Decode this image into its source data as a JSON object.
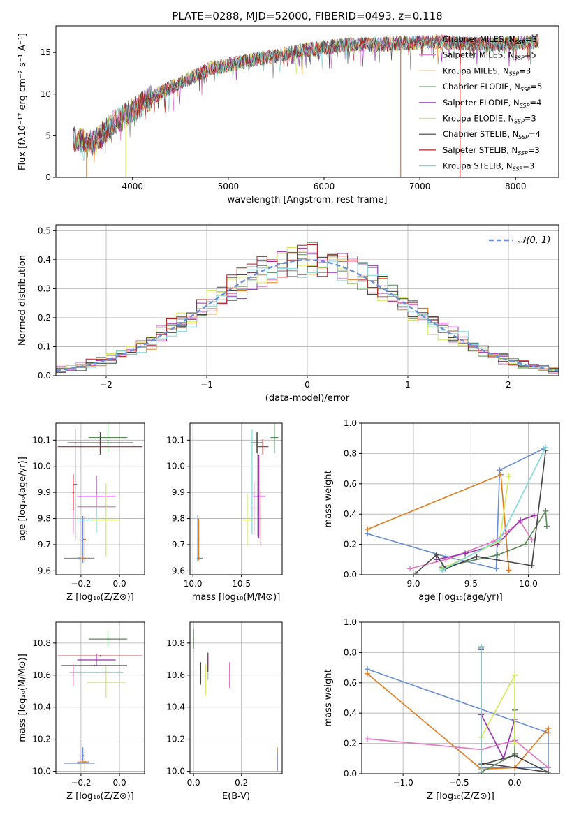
{
  "figure_title": "PLATE=0288, MJD=52000, FIBERID=0493, z=0.118",
  "colors": {
    "chabrier_miles": "#7f7f7f",
    "salpeter_miles": "#e377c2",
    "kroupa_miles": "#e07b20",
    "chabrier_elodie": "#5a8a5a",
    "salpeter_elodie": "#9a2fb0",
    "kroupa_elodie": "#d4e85a",
    "chabrier_stelib": "#444444",
    "salpeter_stelib": "#b22222",
    "kroupa_stelib": "#7fd8d8",
    "blue": "#6a8fd8"
  },
  "legend": [
    {
      "label": "Chabrier MILES, N",
      "sub": "SSP",
      "eq": "=3",
      "color_key": "chabrier_miles"
    },
    {
      "label": "Salpeter MILES, N",
      "sub": "SSP",
      "eq": "=5",
      "color_key": "salpeter_miles"
    },
    {
      "label": "Kroupa MILES, N",
      "sub": "SSP",
      "eq": "=3",
      "color_key": "kroupa_miles"
    },
    {
      "label": "Chabrier ELODIE, N",
      "sub": "SSP",
      "eq": "=5",
      "color_key": "chabrier_elodie"
    },
    {
      "label": "Salpeter ELODIE, N",
      "sub": "SSP",
      "eq": "=4",
      "color_key": "salpeter_elodie"
    },
    {
      "label": "Kroupa ELODIE, N",
      "sub": "SSP",
      "eq": "=3",
      "color_key": "kroupa_elodie"
    },
    {
      "label": "Chabrier STELIB, N",
      "sub": "SSP",
      "eq": "=4",
      "color_key": "chabrier_stelib"
    },
    {
      "label": "Salpeter STELIB, N",
      "sub": "SSP",
      "eq": "=3",
      "color_key": "salpeter_stelib"
    },
    {
      "label": "Kroupa STELIB, N",
      "sub": "SSP",
      "eq": "=3",
      "color_key": "kroupa_stelib"
    }
  ],
  "chart_data": [
    {
      "id": "spectrum",
      "type": "line",
      "xlabel": "wavelength [Angstrom, rest frame]",
      "ylabel": "Flux [fλ10⁻¹⁷ erg cm⁻² s⁻¹ A⁻¹]",
      "xlim": [
        3200,
        8450
      ],
      "ylim": [
        0,
        18.2
      ],
      "xticks": [
        4000,
        5000,
        6000,
        7000,
        8000
      ],
      "yticks": [
        0,
        5,
        10,
        15
      ],
      "grid": false,
      "legend_position": "right",
      "continuum_x": [
        3400,
        3600,
        3800,
        4000,
        4200,
        4400,
        4600,
        4800,
        5000,
        5200,
        5400,
        5600,
        5800,
        6000,
        6200,
        6400,
        6600,
        6800,
        7000,
        7200,
        7400,
        7600,
        7800,
        8000,
        8200
      ],
      "continuum_y": [
        4.5,
        4.2,
        6.5,
        8.0,
        9.6,
        10.8,
        11.9,
        13.0,
        13.5,
        14.0,
        14.4,
        14.8,
        15.3,
        15.6,
        15.9,
        16.0,
        16.0,
        16.1,
        16.2,
        16.3,
        16.1,
        16.0,
        16.0,
        16.1,
        16.3
      ],
      "vertical_spikes": [
        {
          "x": 3520,
          "color_key": "kroupa_miles"
        },
        {
          "x": 3930,
          "color_key": "kroupa_elodie"
        },
        {
          "x": 6800,
          "color_key": "kroupa_miles"
        },
        {
          "x": 7420,
          "color_key": "salpeter_stelib"
        }
      ]
    },
    {
      "id": "residual_hist",
      "type": "line",
      "xlabel": "(data-model)/error",
      "ylabel": "Normed distribution",
      "xlim": [
        -2.5,
        2.5
      ],
      "ylim": [
        0,
        0.52
      ],
      "xticks": [
        -2,
        -1,
        0,
        1,
        2
      ],
      "yticks": [
        0.0,
        0.1,
        0.2,
        0.3,
        0.4,
        0.5
      ],
      "grid": true,
      "reference_label": "𝒩(0, 1)",
      "reference_color_key": "blue",
      "bin_width": 0.1,
      "series": [
        {
          "color_key": "chabrier_miles",
          "jitter": 0.0
        },
        {
          "color_key": "salpeter_miles",
          "jitter": 0.04
        },
        {
          "color_key": "kroupa_miles",
          "jitter": -0.04
        },
        {
          "color_key": "chabrier_elodie",
          "jitter": 0.02
        },
        {
          "color_key": "salpeter_elodie",
          "jitter": -0.03
        },
        {
          "color_key": "kroupa_elodie",
          "jitter": 0.05
        },
        {
          "color_key": "chabrier_stelib",
          "jitter": -0.02
        },
        {
          "color_key": "salpeter_stelib",
          "jitter": 0.03
        },
        {
          "color_key": "kroupa_stelib",
          "jitter": -0.05
        }
      ]
    },
    {
      "id": "age_vs_Z",
      "type": "scatter",
      "xlabel": "Z [log₁₀(Z/Z⊙)]",
      "ylabel": "age  [log₁₀(age/yr)]",
      "xlim": [
        -0.33,
        0.13
      ],
      "ylim": [
        9.585,
        10.165
      ],
      "xticks": [
        -0.2,
        0.0
      ],
      "yticks": [
        9.6,
        9.7,
        9.8,
        9.9,
        10.0,
        10.1
      ],
      "grid": true,
      "points": [
        {
          "x": -0.06,
          "y": 10.11,
          "xerr": 0.1,
          "yerr": 0.06,
          "color_key": "chabrier_elodie"
        },
        {
          "x": -0.1,
          "y": 10.09,
          "xerr": 0.17,
          "yerr": 0.04,
          "color_key": "chabrier_stelib"
        },
        {
          "x": -0.1,
          "y": 10.075,
          "xerr": 0.22,
          "yerr": 0.03,
          "color_key": "salpeter_stelib"
        },
        {
          "x": -0.23,
          "y": 9.93,
          "xerr": 0.01,
          "yerr": 0.21,
          "color_key": "chabrier_stelib"
        },
        {
          "x": -0.12,
          "y": 9.885,
          "xerr": 0.1,
          "yerr": 0.08,
          "color_key": "salpeter_elodie"
        },
        {
          "x": -0.12,
          "y": 9.845,
          "xerr": 0.1,
          "yerr": 0.05,
          "color_key": "salpeter_miles"
        },
        {
          "x": -0.24,
          "y": 9.84,
          "xerr": 0.01,
          "yerr": 0.1,
          "color_key": "salpeter_miles"
        },
        {
          "x": -0.12,
          "y": 9.795,
          "xerr": 0.1,
          "yerr": 0.05,
          "color_key": "kroupa_stelib"
        },
        {
          "x": -0.07,
          "y": 9.795,
          "xerr": 0.07,
          "yerr": 0.14,
          "color_key": "kroupa_elodie"
        },
        {
          "x": -0.24,
          "y": 9.9,
          "xerr": 0.005,
          "yerr": 0.07,
          "color_key": "salpeter_stelib"
        },
        {
          "x": -0.18,
          "y": 9.72,
          "xerr": 0.005,
          "yerr": 0.09,
          "color_key": "kroupa_miles"
        },
        {
          "x": -0.19,
          "y": 9.72,
          "xerr": 0.005,
          "yerr": 0.09,
          "color_key": "blue"
        },
        {
          "x": -0.21,
          "y": 9.648,
          "xerr": 0.08,
          "yerr": 0.005,
          "color_key": "blue"
        },
        {
          "x": -0.19,
          "y": 9.648,
          "xerr": 0.06,
          "yerr": 0.005,
          "color_key": "kroupa_miles"
        }
      ]
    },
    {
      "id": "age_vs_mass",
      "type": "scatter",
      "xlabel": "mass [log₁₀(M/M⊙)]",
      "ylabel": "",
      "xlim": [
        9.97,
        10.92
      ],
      "ylim": [
        9.585,
        10.165
      ],
      "xticks": [
        10.0,
        10.5
      ],
      "yticks": [
        9.6,
        9.7,
        9.8,
        9.9,
        10.0,
        10.1
      ],
      "grid": true,
      "points": [
        {
          "x": 10.84,
          "y": 10.11,
          "xerr": 0.04,
          "yerr": 0.06,
          "color_key": "chabrier_elodie"
        },
        {
          "x": 10.66,
          "y": 10.09,
          "xerr": 0.06,
          "yerr": 0.04,
          "color_key": "chabrier_stelib"
        },
        {
          "x": 10.72,
          "y": 10.075,
          "xerr": 0.06,
          "yerr": 0.03,
          "color_key": "salpeter_stelib"
        },
        {
          "x": 10.67,
          "y": 9.93,
          "xerr": 0.005,
          "yerr": 0.2,
          "color_key": "chabrier_stelib"
        },
        {
          "x": 10.68,
          "y": 9.885,
          "xerr": 0.06,
          "yerr": 0.16,
          "color_key": "salpeter_elodie"
        },
        {
          "x": 10.63,
          "y": 9.84,
          "xerr": 0.04,
          "yerr": 0.1,
          "color_key": "salpeter_miles"
        },
        {
          "x": 10.61,
          "y": 9.94,
          "xerr": 0.005,
          "yerr": 0.2,
          "color_key": "kroupa_stelib"
        },
        {
          "x": 10.56,
          "y": 9.795,
          "xerr": 0.05,
          "yerr": 0.1,
          "color_key": "kroupa_elodie"
        },
        {
          "x": 10.7,
          "y": 9.8,
          "xerr": 0.005,
          "yerr": 0.1,
          "color_key": "salpeter_stelib"
        },
        {
          "x": 10.05,
          "y": 9.725,
          "xerr": 0.005,
          "yerr": 0.09,
          "color_key": "blue"
        },
        {
          "x": 10.06,
          "y": 9.72,
          "xerr": 0.005,
          "yerr": 0.08,
          "color_key": "kroupa_miles"
        },
        {
          "x": 10.07,
          "y": 9.648,
          "xerr": 0.03,
          "yerr": 0.005,
          "color_key": "blue"
        }
      ]
    },
    {
      "id": "weight_vs_age",
      "type": "line",
      "xlabel": "age  [log₁₀(age/yr)]",
      "ylabel": "mass weight",
      "xlim": [
        8.55,
        10.27
      ],
      "ylim": [
        0,
        1.0
      ],
      "xticks": [
        9.0,
        9.5,
        10.0
      ],
      "yticks": [
        0.0,
        0.2,
        0.4,
        0.6,
        0.8,
        1.0
      ],
      "grid": true,
      "series": [
        {
          "color_key": "blue",
          "x": [
            8.6,
            9.28,
            9.72,
            9.75,
            10.13
          ],
          "y": [
            0.27,
            0.12,
            0.04,
            0.69,
            0.83
          ]
        },
        {
          "color_key": "kroupa_miles",
          "x": [
            8.6,
            9.76,
            9.83
          ],
          "y": [
            0.3,
            0.66,
            0.03
          ]
        },
        {
          "color_key": "salpeter_miles",
          "x": [
            8.97,
            9.28,
            9.7,
            9.93,
            10.03
          ],
          "y": [
            0.04,
            0.1,
            0.22,
            0.35,
            0.23
          ]
        },
        {
          "color_key": "salpeter_elodie",
          "x": [
            9.2,
            9.45,
            9.73,
            9.93,
            10.05
          ],
          "y": [
            0.1,
            0.14,
            0.2,
            0.36,
            0.39
          ]
        },
        {
          "color_key": "chabrier_elodie",
          "x": [
            9.25,
            9.73,
            9.97,
            10.15,
            10.16
          ],
          "y": [
            0.05,
            0.13,
            0.2,
            0.42,
            0.32
          ]
        },
        {
          "color_key": "kroupa_elodie",
          "x": [
            9.25,
            9.75,
            9.83
          ],
          "y": [
            0.04,
            0.22,
            0.65
          ]
        },
        {
          "color_key": "chabrier_stelib",
          "x": [
            9.02,
            9.2,
            9.28,
            9.55,
            10.03,
            10.15
          ],
          "y": [
            0.01,
            0.13,
            0.04,
            0.12,
            0.06,
            0.82
          ]
        },
        {
          "color_key": "kroupa_stelib",
          "x": [
            9.25,
            9.75,
            10.15
          ],
          "y": [
            0.03,
            0.23,
            0.84
          ]
        }
      ]
    },
    {
      "id": "mass_vs_Z",
      "type": "scatter",
      "xlabel": "Z [log₁₀(Z/Z⊙)]",
      "ylabel": "mass [log₁₀(M/M⊙)]",
      "xlim": [
        -0.33,
        0.13
      ],
      "ylim": [
        9.985,
        10.93
      ],
      "xticks": [
        -0.2,
        0.0
      ],
      "yticks": [
        10.0,
        10.2,
        10.4,
        10.6,
        10.8
      ],
      "grid": true,
      "points": [
        {
          "x": -0.06,
          "y": 10.825,
          "xerr": 0.1,
          "yerr": 0.05,
          "color_key": "chabrier_elodie"
        },
        {
          "x": -0.1,
          "y": 10.72,
          "xerr": 0.22,
          "yerr": 0.005,
          "color_key": "salpeter_stelib"
        },
        {
          "x": -0.12,
          "y": 10.695,
          "xerr": 0.1,
          "yerr": 0.04,
          "color_key": "salpeter_elodie"
        },
        {
          "x": -0.13,
          "y": 10.66,
          "xerr": 0.17,
          "yerr": 0.005,
          "color_key": "chabrier_stelib"
        },
        {
          "x": -0.12,
          "y": 10.615,
          "xerr": 0.14,
          "yerr": 0.005,
          "color_key": "kroupa_stelib"
        },
        {
          "x": -0.24,
          "y": 10.6,
          "xerr": 0.005,
          "yerr": 0.07,
          "color_key": "salpeter_miles"
        },
        {
          "x": -0.07,
          "y": 10.555,
          "xerr": 0.1,
          "yerr": 0.1,
          "color_key": "kroupa_elodie"
        },
        {
          "x": -0.19,
          "y": 10.1,
          "xerr": 0.005,
          "yerr": 0.05,
          "color_key": "blue"
        },
        {
          "x": -0.18,
          "y": 10.06,
          "xerr": 0.005,
          "yerr": 0.06,
          "color_key": "kroupa_miles"
        },
        {
          "x": -0.21,
          "y": 10.05,
          "xerr": 0.08,
          "yerr": 0.005,
          "color_key": "blue"
        },
        {
          "x": -0.19,
          "y": 10.058,
          "xerr": 0.03,
          "yerr": 0.005,
          "color_key": "kroupa_miles"
        }
      ]
    },
    {
      "id": "mass_vs_ebv",
      "type": "scatter",
      "xlabel": "E(B-V)",
      "ylabel": "",
      "xlim": [
        -0.015,
        0.37
      ],
      "ylim": [
        9.985,
        10.93
      ],
      "xticks": [
        0.0,
        0.2
      ],
      "yticks": [
        10.0,
        10.2,
        10.4,
        10.6,
        10.8
      ],
      "grid": true,
      "points": [
        {
          "x": 0.0,
          "y": 10.825,
          "xerr": 0.002,
          "yerr": 0.06,
          "color_key": "chabrier_elodie"
        },
        {
          "x": 0.03,
          "y": 10.61,
          "xerr": 0.002,
          "yerr": 0.07,
          "color_key": "chabrier_stelib"
        },
        {
          "x": 0.05,
          "y": 10.57,
          "xerr": 0.002,
          "yerr": 0.1,
          "color_key": "kroupa_elodie"
        },
        {
          "x": 0.06,
          "y": 10.64,
          "xerr": 0.002,
          "yerr": 0.07,
          "color_key": "kroupa_stelib"
        },
        {
          "x": 0.06,
          "y": 10.68,
          "xerr": 0.002,
          "yerr": 0.06,
          "color_key": "salpeter_stelib"
        },
        {
          "x": 0.06,
          "y": 10.7,
          "xerr": 0.002,
          "yerr": 0.04,
          "color_key": "salpeter_elodie"
        },
        {
          "x": 0.15,
          "y": 10.6,
          "xerr": 0.002,
          "yerr": 0.08,
          "color_key": "salpeter_miles"
        },
        {
          "x": 0.35,
          "y": 10.08,
          "xerr": 0.002,
          "yerr": 0.07,
          "color_key": "kroupa_miles"
        },
        {
          "x": 0.35,
          "y": 10.06,
          "xerr": 0.002,
          "yerr": 0.06,
          "color_key": "blue"
        }
      ]
    },
    {
      "id": "weight_vs_Z",
      "type": "line",
      "xlabel": "Z [log₁₀(Z/Z⊙)]",
      "ylabel": "mass weight",
      "xlim": [
        -1.37,
        0.4
      ],
      "ylim": [
        0,
        1.0
      ],
      "xticks": [
        -1.0,
        -0.5,
        0.0
      ],
      "yticks": [
        0.0,
        0.2,
        0.4,
        0.6,
        0.8,
        1.0
      ],
      "grid": true,
      "series": [
        {
          "color_key": "blue",
          "x": [
            -1.32,
            0.3,
            0.3,
            -0.3,
            -0.3
          ],
          "y": [
            0.69,
            0.27,
            0.04,
            0.04,
            0.83
          ]
        },
        {
          "color_key": "kroupa_miles",
          "x": [
            -1.32,
            -0.3,
            0.0,
            0.3,
            0.3
          ],
          "y": [
            0.66,
            0.03,
            0.04,
            0.3,
            0.27
          ]
        },
        {
          "color_key": "salpeter_miles",
          "x": [
            -1.32,
            -0.3,
            0.0,
            0.3
          ],
          "y": [
            0.23,
            0.16,
            0.22,
            0.04
          ]
        },
        {
          "color_key": "salpeter_elodie",
          "x": [
            -0.3,
            -0.1,
            0.0
          ],
          "y": [
            0.39,
            0.1,
            0.36
          ]
        },
        {
          "color_key": "chabrier_elodie",
          "x": [
            -0.3,
            0.0,
            0.0
          ],
          "y": [
            0.01,
            0.13,
            0.42
          ]
        },
        {
          "color_key": "kroupa_elodie",
          "x": [
            -0.3,
            0.0,
            0.0
          ],
          "y": [
            0.24,
            0.65,
            0.2
          ]
        },
        {
          "color_key": "chabrier_stelib",
          "x": [
            -0.3,
            0.0,
            0.3,
            -0.3,
            -0.3
          ],
          "y": [
            0.06,
            0.12,
            0.01,
            0.07,
            0.82
          ]
        },
        {
          "color_key": "kroupa_stelib",
          "x": [
            -0.3,
            -0.3
          ],
          "y": [
            0.03,
            0.84
          ]
        }
      ]
    }
  ]
}
